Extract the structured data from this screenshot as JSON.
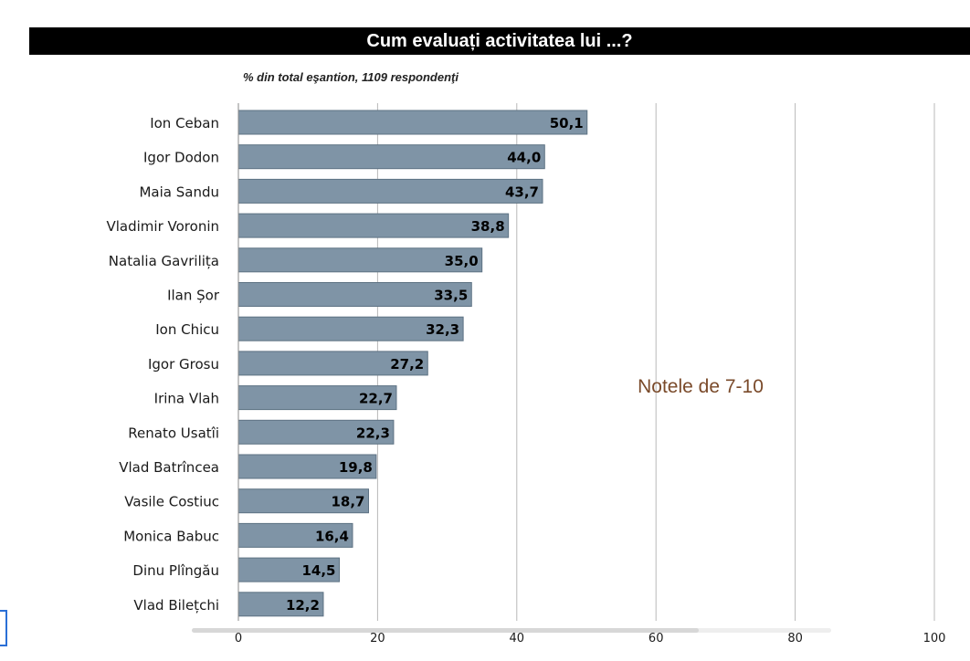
{
  "title": "Cum evaluați activitatea lui ...?",
  "subtitle": "% din total eşantion, 1109 respondenţi",
  "colors": {
    "bar": "#7f94a6",
    "bar_border": "#5d7283",
    "annotation": "#7a4a2a",
    "grid": "#b8b8b8"
  },
  "chart_data": {
    "type": "bar",
    "orientation": "horizontal",
    "title": "Cum evaluați activitatea lui ...?",
    "subtitle": "% din total eşantion, 1109 respondenţi",
    "categories": [
      "Ion Ceban",
      "Igor Dodon",
      "Maia Sandu",
      "Vladimir Voronin",
      "Natalia Gavrilița",
      "Ilan Șor",
      "Ion Chicu",
      "Igor Grosu",
      "Irina Vlah",
      "Renato Usatîi",
      "Vlad Batrîncea",
      "Vasile Costiuc",
      "Monica Babuc",
      "Dinu Plîngău",
      "Vlad Bilețchi"
    ],
    "values": [
      50.1,
      44.0,
      43.7,
      38.8,
      35.0,
      33.5,
      32.3,
      27.2,
      22.7,
      22.3,
      19.8,
      18.7,
      16.4,
      14.5,
      12.2
    ],
    "value_labels": [
      "50,1",
      "44,0",
      "43,7",
      "38,8",
      "35,0",
      "33,5",
      "32,3",
      "27,2",
      "22,7",
      "22,3",
      "19,8",
      "18,7",
      "16,4",
      "14,5",
      "12,2"
    ],
    "xlim": [
      0,
      100
    ],
    "xticks": [
      0,
      20,
      40,
      60,
      80,
      100
    ],
    "xtick_labels": [
      "0",
      "20",
      "40",
      "60",
      "80",
      "100"
    ],
    "grid": true,
    "annotation": "Notele de 7-10",
    "xlabel": "",
    "ylabel": ""
  }
}
